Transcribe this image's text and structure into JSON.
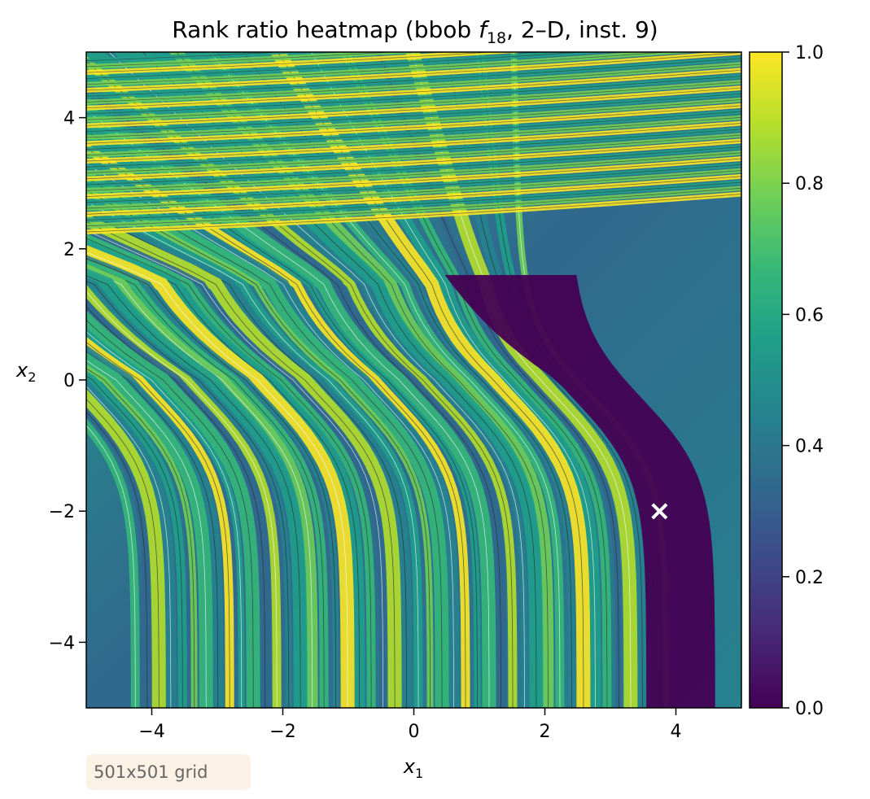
{
  "chart_data": {
    "type": "heatmap",
    "title": {
      "prefix": "Rank ratio heatmap (bbob ",
      "fn_letter": "f",
      "fn_sub": "18",
      "suffix": ", 2–D, inst. 9)"
    },
    "xlabel": {
      "base": "x",
      "sub": "1"
    },
    "ylabel": {
      "base": "x",
      "sub": "2"
    },
    "xlim": [
      -5,
      5
    ],
    "ylim": [
      -5,
      5
    ],
    "x_ticks": [
      -4,
      -2,
      0,
      2,
      4
    ],
    "y_ticks": [
      -4,
      -2,
      0,
      2,
      4
    ],
    "x_tick_labels": [
      "−4",
      "−2",
      "0",
      "2",
      "4"
    ],
    "y_tick_labels": [
      "−4",
      "−2",
      "0",
      "2",
      "4"
    ],
    "colorbar": {
      "colormap": "viridis",
      "range": [
        0,
        1
      ],
      "ticks": [
        0,
        0.2,
        0.4,
        0.6,
        0.8,
        1
      ],
      "tick_labels": [
        "0.0",
        "0.2",
        "0.4",
        "0.6",
        "0.8",
        "1.0"
      ],
      "stops": [
        "#440154",
        "#482878",
        "#3e4989",
        "#31688e",
        "#26828e",
        "#1f9e89",
        "#35b779",
        "#6ece58",
        "#b5de2b",
        "#fde725"
      ]
    },
    "marker": {
      "symbol": "×",
      "x": 3.75,
      "y": -2.0,
      "color": "#ffffff"
    },
    "annotation": "501x501 grid",
    "grid": false,
    "legend": "none"
  }
}
